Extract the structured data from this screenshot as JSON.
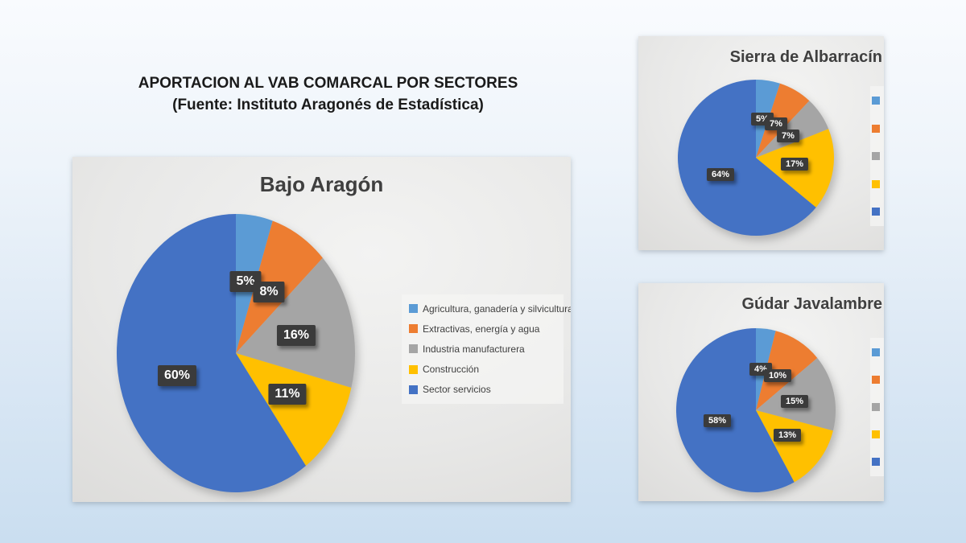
{
  "slide": {
    "title_line1": "APORTACION AL VAB COMARCAL POR SECTORES",
    "title_line2": "(Fuente: Instituto Aragonés de Estadística)"
  },
  "legend": {
    "items": [
      "Agricultura, ganadería y silvicultura",
      "Extractivas, energía y agua",
      "Industria manufacturera",
      "Construcción",
      "Sector servicios"
    ]
  },
  "colors": {
    "sector_palette": [
      "#5B9BD5",
      "#ED7D31",
      "#A5A5A5",
      "#FFC000",
      "#4472C4"
    ],
    "label_box": "#3b3b3b",
    "label_text": "#ffffff",
    "panel_title": "#3f3f3f",
    "slide_bg_top": "#f9fbfe",
    "slide_bg_bottom": "#cadef0"
  },
  "chart_data": [
    {
      "type": "pie",
      "title": "Bajo Aragón",
      "categories": [
        "Agricultura, ganadería y silvicultura",
        "Extractivas, energía y agua",
        "Industria manufacturera",
        "Construcción",
        "Sector servicios"
      ],
      "values": [
        5,
        8,
        16,
        11,
        60
      ],
      "data_labels": [
        "5%",
        "8%",
        "16%",
        "11%",
        "60%"
      ],
      "start_angle_deg": 0,
      "direction": "clockwise",
      "legend_position": "right",
      "legend_visible": "full"
    },
    {
      "type": "pie",
      "title": "Sierra de Albarracín",
      "categories": [
        "Agricultura, ganadería y silvicultura",
        "Extractivas, energía y agua",
        "Industria manufacturera",
        "Construcción",
        "Sector servicios"
      ],
      "values": [
        5,
        7,
        7,
        17,
        64
      ],
      "data_labels": [
        "5%",
        "7%",
        "7%",
        "17%",
        "64%"
      ],
      "start_angle_deg": 0,
      "direction": "clockwise",
      "legend_position": "right",
      "legend_visible": "swatches-clipped"
    },
    {
      "type": "pie",
      "title": "Gúdar Javalambre",
      "categories": [
        "Agricultura, ganadería y silvicultura",
        "Extractivas, energía y agua",
        "Industria manufacturera",
        "Construcción",
        "Sector servicios"
      ],
      "values": [
        4,
        10,
        15,
        13,
        58
      ],
      "data_labels": [
        "4%",
        "10%",
        "15%",
        "13%",
        "58%"
      ],
      "start_angle_deg": 0,
      "direction": "clockwise",
      "legend_position": "right",
      "legend_visible": "swatches-clipped"
    }
  ]
}
